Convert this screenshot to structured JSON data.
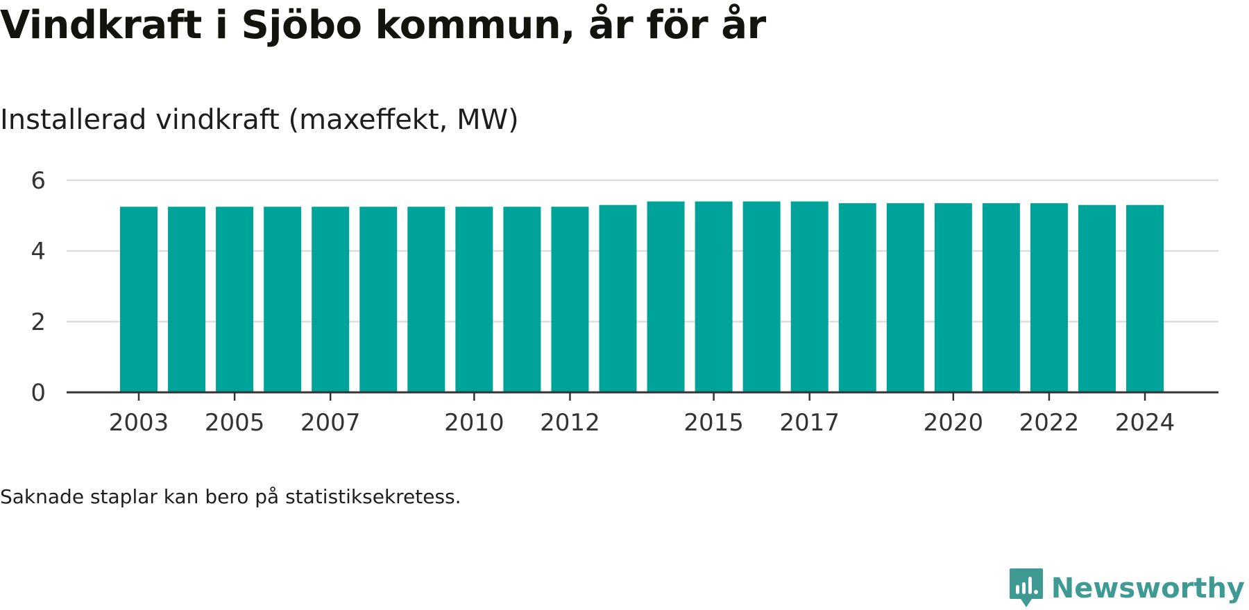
{
  "title": "Vindkraft i Sjöbo kommun, år för år",
  "subtitle": "Installerad vindkraft (maxeffekt, MW)",
  "footnote": "Saknade staplar kan bero på statistiksekretess.",
  "brand": "Newsworthy",
  "colors": {
    "bar": "#00a39a",
    "grid": "#dddddd",
    "axis": "#333333",
    "brand": "#3e9a92"
  },
  "chart_data": {
    "type": "bar",
    "categories": [
      "2003",
      "2004",
      "2005",
      "2006",
      "2007",
      "2008",
      "2009",
      "2010",
      "2011",
      "2012",
      "2013",
      "2014",
      "2015",
      "2016",
      "2017",
      "2018",
      "2019",
      "2020",
      "2021",
      "2022",
      "2023",
      "2024"
    ],
    "values": [
      5.25,
      5.25,
      5.25,
      5.25,
      5.25,
      5.25,
      5.25,
      5.25,
      5.25,
      5.25,
      5.3,
      5.4,
      5.4,
      5.4,
      5.4,
      5.35,
      5.35,
      5.35,
      5.35,
      5.35,
      5.3,
      5.3
    ],
    "xticks": [
      "2003",
      "2005",
      "2007",
      "2010",
      "2012",
      "2015",
      "2017",
      "2020",
      "2022",
      "2024"
    ],
    "yticks": [
      0,
      2,
      4,
      6
    ],
    "ylim": [
      0,
      6
    ],
    "grid": true
  }
}
